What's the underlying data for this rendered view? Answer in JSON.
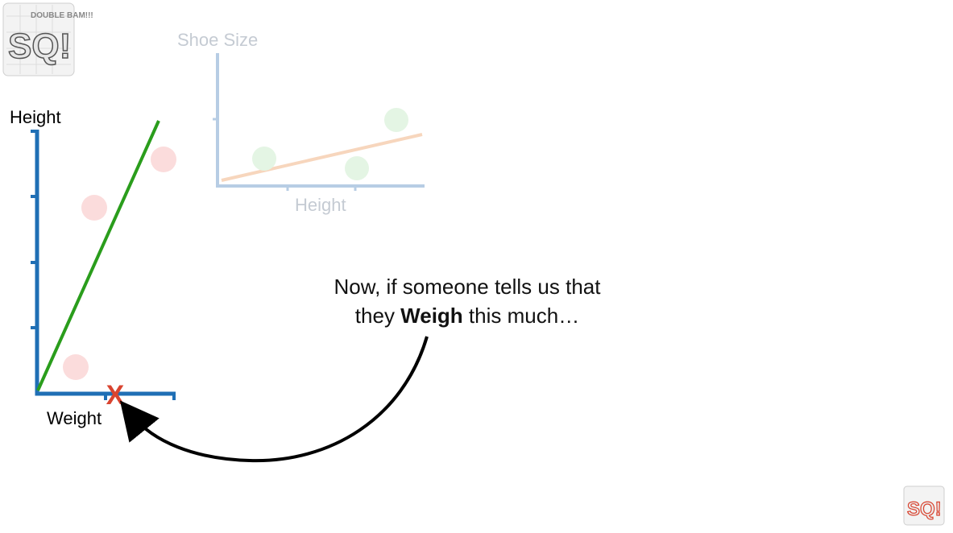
{
  "logo": {
    "letters": "SQ!",
    "tagline": "DOUBLE BAM!!!"
  },
  "faded_plot": {
    "ylabel": "Shoe Size",
    "xlabel": "Height",
    "line_color": "#f7c9a6",
    "point_color": "#d9f2d9",
    "axis_color": "#b7cde4"
  },
  "main_plot": {
    "ylabel": "Height",
    "xlabel": "Weight",
    "axis_color": "#1f6fb5",
    "line_color": "#2a9d1c",
    "point_color": "#fbd5d5",
    "marker": "X",
    "marker_color": "#d94430"
  },
  "caption": {
    "line1": "Now, if someone tells us that",
    "line2_pre": "they ",
    "line2_bold": "Weigh",
    "line2_post": " this much…"
  }
}
